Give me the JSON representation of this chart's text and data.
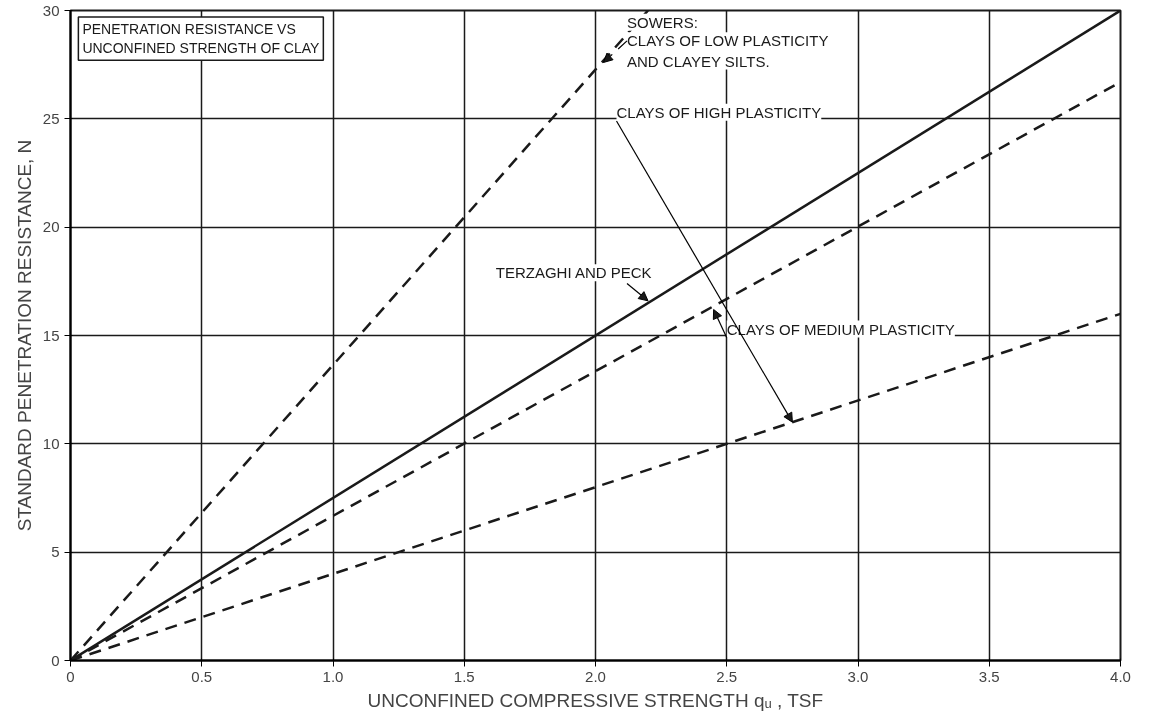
{
  "chart_data": {
    "type": "line",
    "title": "PENETRATION RESISTANCE VS UNCONFINED STRENGTH OF CLAY",
    "xlabel": "UNCONFINED COMPRESSIVE STRENGTH qᵤ , TSF",
    "ylabel": "STANDARD PENETRATION RESISTANCE, N",
    "annotations": [
      "SOWERS:"
    ],
    "series": [
      {
        "name": "CLAYS OF LOW PLASTICITY AND CLAYEY SILTS.",
        "color": "#1a1a1a",
        "line_style": "dashed",
        "x": [
          0,
          2.2
        ],
        "values": [
          0,
          30
        ]
      },
      {
        "name": "CLAYS OF MEDIUM PLASTICITY",
        "color": "#1a1a1a",
        "line_style": "dashed",
        "x": [
          0,
          4.0
        ],
        "values": [
          0,
          26.7
        ]
      },
      {
        "name": "CLAYS OF HIGH PLASTICITY",
        "color": "#1a1a1a",
        "line_style": "dashed",
        "x": [
          0,
          4.0
        ],
        "values": [
          0,
          16
        ]
      },
      {
        "name": "TERZAGHI AND PECK",
        "color": "#1a1a1a",
        "line_style": "solid",
        "x": [
          0,
          4.0
        ],
        "values": [
          0,
          30
        ]
      }
    ],
    "xlim": [
      0,
      4.0
    ],
    "ylim": [
      0,
      30
    ],
    "xticks": [
      0,
      0.5,
      {
        "value": 1,
        "label": "1.0"
      },
      1.5,
      {
        "value": 2,
        "label": "2.0"
      },
      2.5,
      {
        "value": 3,
        "label": "3.0"
      },
      3.5,
      {
        "value": 4,
        "label": "4.0"
      }
    ],
    "yticks": [
      0,
      5,
      10,
      15,
      20,
      25,
      30
    ],
    "grid": true,
    "marker": "none"
  }
}
